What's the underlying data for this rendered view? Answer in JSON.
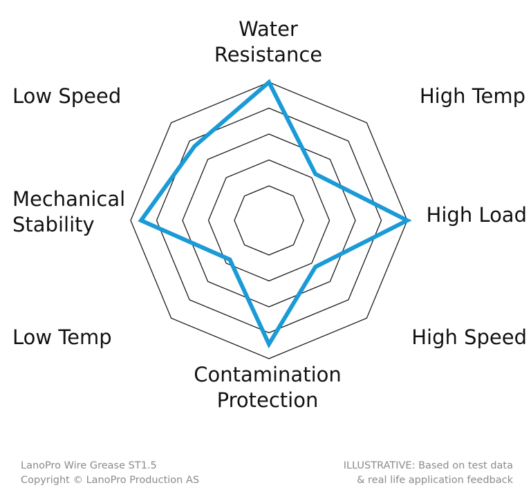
{
  "chart_data": {
    "type": "radar",
    "axes": [
      {
        "lines": [
          "Water",
          "Resistance"
        ]
      },
      {
        "lines": [
          "High Temp"
        ]
      },
      {
        "lines": [
          "High Load"
        ]
      },
      {
        "lines": [
          "High Speed"
        ]
      },
      {
        "lines": [
          "Contamination",
          "Protection"
        ]
      },
      {
        "lines": [
          "Low Temp"
        ]
      },
      {
        "lines": [
          "Mechanical",
          "Stability"
        ]
      },
      {
        "lines": [
          "Low Speed"
        ]
      }
    ],
    "levels": 5,
    "scale_max": 5,
    "series": [
      {
        "values": [
          5,
          1.5,
          5,
          1.5,
          4.3,
          1,
          4.5,
          3.4
        ],
        "color": "#1a9ad6"
      }
    ]
  },
  "footer": {
    "product": "LanoPro Wire Grease ST1.5",
    "copyright": "Copyright © LanoPro Production AS",
    "note_line1": "ILLUSTRATIVE: Based on test data",
    "note_line2": "& real life application feedback"
  }
}
